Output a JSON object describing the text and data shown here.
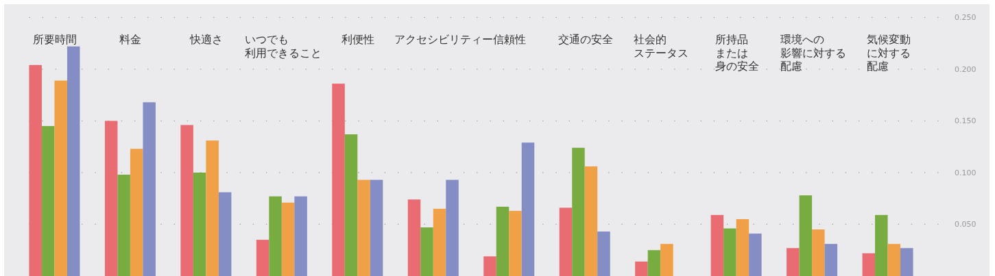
{
  "chart_data": {
    "type": "bar",
    "categories": [
      "所要時間",
      "料金",
      "快適さ",
      "いつでも利用できること",
      "利便性",
      "アクセシビリティー",
      "信頼性",
      "交通の安全",
      "社会的ステータス",
      "所持品または身の安全",
      "環境への影響に対する配慮",
      "気候変動に対する配慮"
    ],
    "series": [
      {
        "color": "#e86c71",
        "values": [
          0.204,
          0.15,
          0.146,
          0.035,
          0.186,
          0.074,
          0.019,
          0.066,
          0.014,
          0.059,
          0.027,
          0.022
        ]
      },
      {
        "color": "#78ac40",
        "values": [
          0.145,
          0.098,
          0.1,
          0.077,
          0.137,
          0.047,
          0.067,
          0.124,
          0.025,
          0.046,
          0.078,
          0.059
        ]
      },
      {
        "color": "#f0a046",
        "values": [
          0.189,
          0.123,
          0.131,
          0.071,
          0.093,
          0.065,
          0.063,
          0.106,
          0.031,
          0.055,
          0.045,
          0.031
        ]
      },
      {
        "color": "#848dc4",
        "values": [
          0.222,
          0.168,
          0.081,
          0.077,
          0.093,
          0.093,
          0.129,
          0.043,
          null,
          0.041,
          0.031,
          0.027
        ]
      }
    ],
    "ylim": [
      0,
      0.25
    ],
    "yticks": [
      {
        "value": 0.05,
        "label": "0.050"
      },
      {
        "value": 0.1,
        "label": "0.100"
      },
      {
        "value": 0.15,
        "label": "0.150"
      },
      {
        "value": 0.2,
        "label": "0.200"
      },
      {
        "value": 0.25,
        "label": "0.250"
      }
    ],
    "grid": "y"
  }
}
